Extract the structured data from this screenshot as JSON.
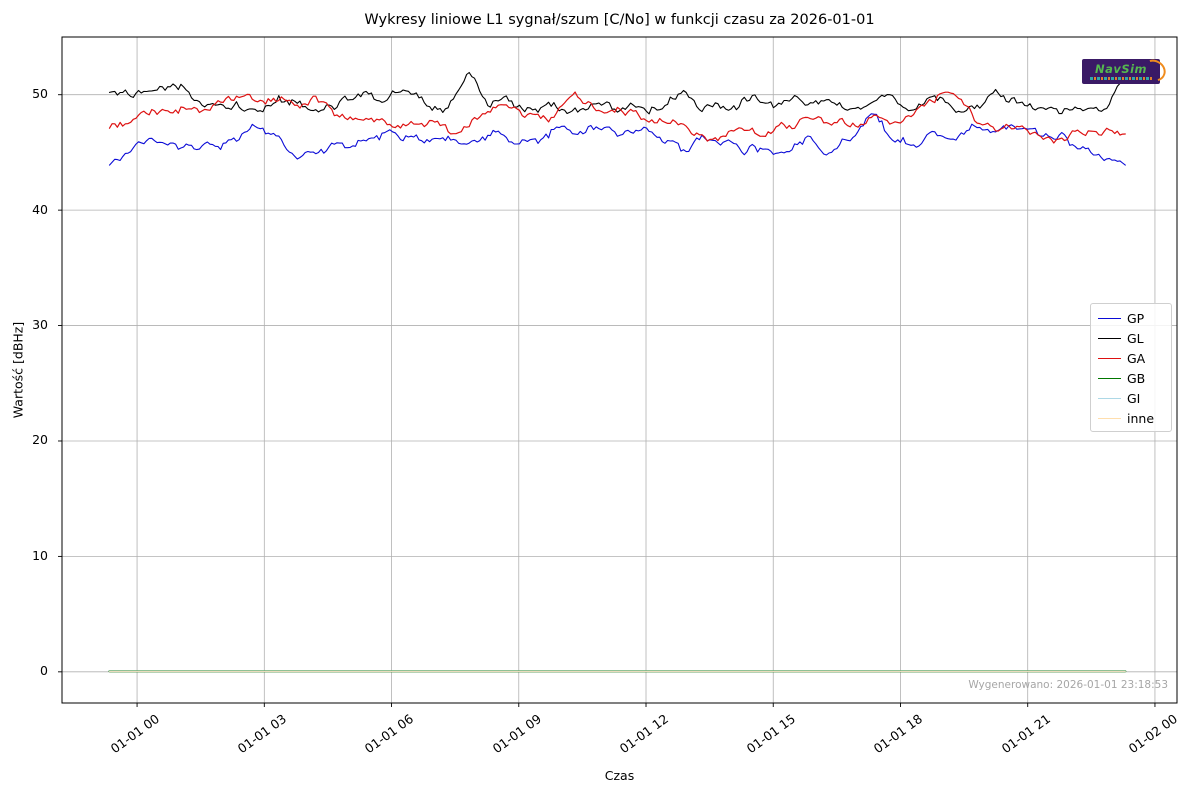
{
  "watermark": {
    "text": "NavSim",
    "bg_color": "#3a1a66",
    "text_color": "#55b84f",
    "accent_color": "#f08c1e"
  },
  "footer_note": "Wygenerowano: 2026-01-01 23:18:53",
  "chart_data": {
    "type": "line",
    "title": "Wykresy liniowe L1 sygnał/szum [C/No] w funkcji czasu za 2026-01-01",
    "xlabel": "Czas",
    "ylabel": "Wartość [dBHz]",
    "grid": true,
    "grid_color": "#b0b0b0",
    "legend_position": "center right",
    "ylim": [
      -2.7,
      55.0
    ],
    "y_ticks": [
      0,
      10,
      20,
      30,
      40,
      50
    ],
    "xlim_hours": [
      -1.77,
      24.52
    ],
    "x_tick_hours": [
      0,
      3,
      6,
      9,
      12,
      15,
      18,
      21,
      24
    ],
    "x_tick_labels": [
      "01-01 00",
      "01-01 03",
      "01-01 06",
      "01-01 09",
      "01-01 12",
      "01-01 15",
      "01-01 18",
      "01-01 21",
      "01-02 00"
    ],
    "x_start_hours": -0.65,
    "x_end_hours": 23.3,
    "series": [
      {
        "name": "GP",
        "color": "#0b0bd6",
        "width": 1.1,
        "noise": 1,
        "values": [
          43.9,
          45.1,
          46.3,
          45.9,
          45.3,
          45.6,
          45.9,
          47.2,
          46.4,
          44.6,
          45.2,
          45.7,
          46.1,
          46.7,
          46.4,
          46.0,
          46.3,
          45.8,
          46.5,
          45.9,
          46.2,
          47.0,
          46.7,
          47.1,
          46.5,
          46.8,
          46.2,
          45.2,
          46.4,
          45.8,
          44.9,
          45.3,
          45.0,
          46.4,
          44.9,
          46.1,
          48.3,
          46.0,
          45.6,
          46.8,
          46.1,
          47.2,
          46.9,
          47.0,
          46.5,
          46.7,
          45.4,
          44.4,
          43.9
        ]
      },
      {
        "name": "GL",
        "color": "#000000",
        "width": 1.1,
        "noise": 1,
        "values": [
          50.2,
          49.9,
          50.3,
          51.0,
          49.6,
          49.0,
          49.4,
          48.6,
          49.9,
          49.4,
          48.7,
          49.6,
          50.1,
          49.4,
          50.4,
          49.1,
          48.8,
          52.0,
          48.9,
          49.4,
          48.6,
          49.2,
          48.8,
          49.3,
          48.6,
          49.0,
          48.7,
          50.1,
          48.6,
          48.9,
          49.8,
          49.2,
          49.4,
          49.1,
          49.6,
          48.7,
          49.3,
          49.9,
          48.6,
          49.8,
          48.4,
          49.0,
          50.2,
          49.3,
          48.9,
          48.3,
          48.5,
          48.7,
          51.3
        ]
      },
      {
        "name": "GA",
        "color": "#dd1111",
        "width": 1.2,
        "noise": 1,
        "values": [
          47.1,
          47.6,
          48.7,
          48.4,
          48.9,
          49.2,
          49.8,
          49.3,
          49.6,
          48.9,
          49.3,
          48.4,
          47.9,
          47.7,
          47.4,
          47.5,
          46.9,
          47.2,
          48.6,
          48.9,
          48.2,
          48.0,
          50.2,
          48.6,
          49.0,
          48.3,
          47.9,
          47.4,
          46.6,
          46.3,
          47.0,
          46.5,
          47.2,
          48.0,
          47.5,
          47.2,
          48.1,
          47.6,
          48.3,
          49.4,
          49.9,
          47.6,
          46.9,
          47.3,
          46.4,
          46.2,
          46.5,
          46.8,
          46.6
        ]
      },
      {
        "name": "GB",
        "color": "#007700",
        "width": 2.0,
        "noise": 0,
        "values": [
          0.05,
          0.05
        ]
      },
      {
        "name": "GI",
        "color": "#add8e6",
        "width": 1.3,
        "noise": 0,
        "values": [
          0.05,
          0.05
        ]
      },
      {
        "name": "inne",
        "color": "#ffdead",
        "width": 0.9,
        "noise": 0,
        "values": [
          0.05,
          0.05
        ]
      }
    ]
  }
}
